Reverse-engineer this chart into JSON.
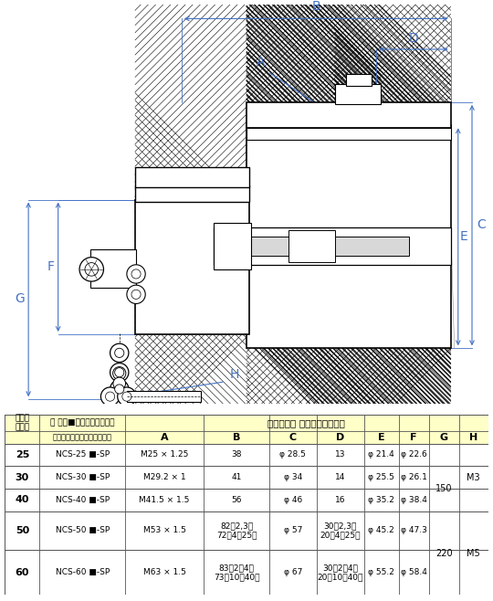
{
  "bg_color": "#ffffff",
  "line_color": "#000000",
  "dim_color": "#4472c4",
  "fig_width": 5.4,
  "fig_height": 6.58,
  "shell_sizes": [
    "25",
    "30",
    "40",
    "50",
    "60"
  ],
  "product_names": [
    "NCS-25 ■-SP",
    "NCS-30 ■-SP",
    "NCS-40 ■-SP",
    "NCS-50 ■-SP",
    "NCS-60 ■-SP"
  ],
  "col_A": [
    "M25 × 1.25",
    "M29.2 × 1",
    "M41.5 × 1.5",
    "M53 × 1.5",
    "M63 × 1.5"
  ],
  "col_B": [
    "38",
    "41",
    "56",
    "82（2,3）\n72（4～25）",
    "83（2～4）\n73（10～40）"
  ],
  "col_C": [
    "φ 28.5",
    "φ 34",
    "φ 46",
    "φ 57",
    "φ 67"
  ],
  "col_D": [
    "13",
    "14",
    "16",
    "30（2,3）\n20（4～25）",
    "30（2～4）\n20（10～40）"
  ],
  "col_E": [
    "φ 21.4",
    "φ 25.5",
    "φ 35.2",
    "φ 45.2",
    "φ 55.2"
  ],
  "col_F": [
    "φ 22.6",
    "φ 26.1",
    "φ 38.4",
    "φ 47.3",
    "φ 58.4"
  ],
  "col_G": [
    "",
    "150",
    "",
    "",
    "220"
  ],
  "col_H": [
    "",
    "M3",
    "",
    "",
    "M5"
  ],
  "header_name": "品 名（■はコンタクト数）",
  "header_std": "標準寿法（ ）はコンタクト数",
  "header_contact": "正芯（ソケットコンタクト）",
  "header_shell": "シェル\nサイズ",
  "table_yellow": "#ffffc8",
  "table_white": "#ffffff"
}
